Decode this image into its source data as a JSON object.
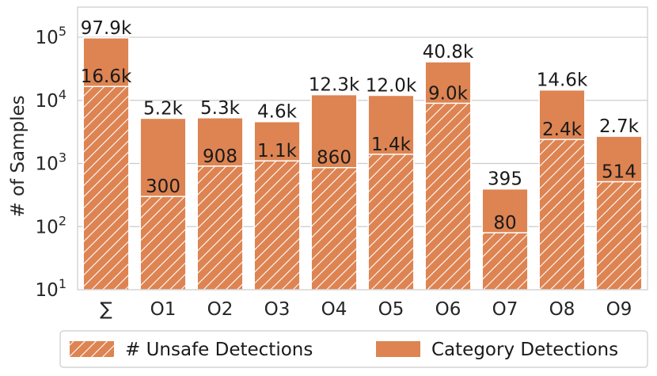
{
  "chart_data": {
    "type": "bar",
    "scale": "log",
    "ylabel": "# of Samples",
    "xlabel": "",
    "ylim": [
      10,
      300000
    ],
    "categories": [
      "∑",
      "O1",
      "O2",
      "O3",
      "O4",
      "O5",
      "O6",
      "O7",
      "O8",
      "O9"
    ],
    "series": [
      {
        "name": "Category Detections",
        "values": [
          97900,
          5200,
          5300,
          4600,
          12300,
          12000,
          40800,
          395,
          14600,
          2700
        ],
        "labels": [
          "97.9k",
          "5.2k",
          "5.3k",
          "4.6k",
          "12.3k",
          "12.0k",
          "40.8k",
          "395",
          "14.6k",
          "2.7k"
        ],
        "color": "#dd8452",
        "pattern": "solid"
      },
      {
        "name": "# Unsafe Detections",
        "values": [
          16600,
          300,
          908,
          1100,
          860,
          1400,
          9000,
          80,
          2400,
          514
        ],
        "labels": [
          "16.6k",
          "300",
          "908",
          "1.1k",
          "860",
          "1.4k",
          "9.0k",
          "80",
          "2.4k",
          "514"
        ],
        "color": "#dd8452",
        "pattern": "hatched"
      }
    ],
    "y_ticks": [
      {
        "value": 10,
        "base": "10",
        "exp": "1"
      },
      {
        "value": 100,
        "base": "10",
        "exp": "2"
      },
      {
        "value": 1000,
        "base": "10",
        "exp": "3"
      },
      {
        "value": 10000,
        "base": "10",
        "exp": "4"
      },
      {
        "value": 100000,
        "base": "10",
        "exp": "5"
      }
    ],
    "grid": true,
    "legend": {
      "placement": "bottom",
      "entries": [
        "# Unsafe Detections",
        "Category Detections"
      ]
    }
  }
}
